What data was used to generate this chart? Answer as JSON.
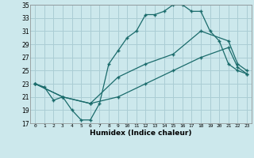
{
  "title": "",
  "xlabel": "Humidex (Indice chaleur)",
  "bg_color": "#cce8ec",
  "grid_color": "#aacdd4",
  "line_color": "#1a6b6b",
  "xlim": [
    -0.5,
    23.5
  ],
  "ylim": [
    17,
    35
  ],
  "xticks": [
    0,
    1,
    2,
    3,
    4,
    5,
    6,
    7,
    8,
    9,
    10,
    11,
    12,
    13,
    14,
    15,
    16,
    17,
    18,
    19,
    20,
    21,
    22,
    23
  ],
  "yticks": [
    17,
    19,
    21,
    23,
    25,
    27,
    29,
    31,
    33,
    35
  ],
  "line1_x": [
    0,
    1,
    2,
    3,
    4,
    5,
    6,
    7,
    8,
    9,
    10,
    11,
    12,
    13,
    14,
    15,
    16,
    17,
    18,
    19,
    20,
    21,
    22,
    23
  ],
  "line1_y": [
    23,
    22.5,
    20.5,
    21,
    19,
    17.5,
    17.5,
    20,
    26,
    28,
    30,
    31,
    33.5,
    33.5,
    34,
    35,
    35,
    34,
    34,
    31,
    29.5,
    26,
    25,
    24.5
  ],
  "line2_x": [
    0,
    3,
    6,
    9,
    12,
    15,
    18,
    21,
    22,
    23
  ],
  "line2_y": [
    23,
    21,
    20,
    24,
    26,
    27.5,
    31,
    29.5,
    26,
    25
  ],
  "line3_x": [
    0,
    3,
    6,
    9,
    12,
    15,
    18,
    21,
    22,
    23
  ],
  "line3_y": [
    23,
    21,
    20,
    21,
    23,
    25,
    27,
    28.5,
    25.5,
    24.5
  ]
}
